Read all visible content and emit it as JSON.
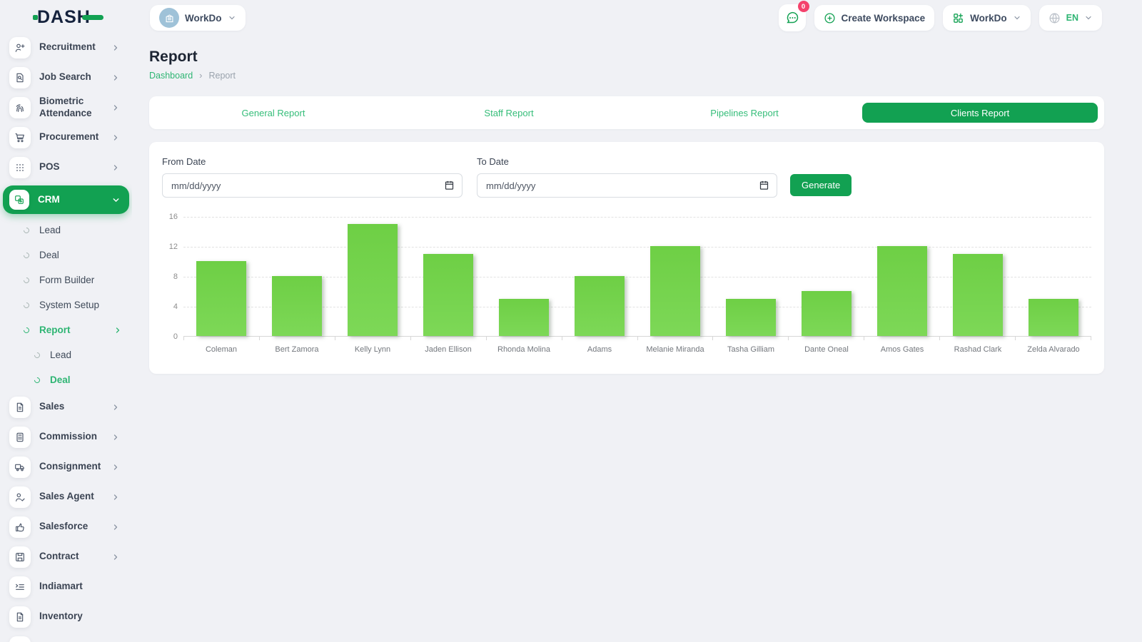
{
  "brand": {
    "logo_text": "DASH"
  },
  "header": {
    "workspace_switcher": {
      "label": "WorkDo",
      "icon": "building-avatar-icon"
    },
    "messages_button": {
      "icon": "chat-bubble-icon",
      "badge": "0"
    },
    "create_workspace": {
      "label": "Create Workspace",
      "icon": "plus-circle-icon"
    },
    "workdo_menu": {
      "label": "WorkDo",
      "icon": "grid-plus-icon"
    },
    "language_menu": {
      "label": "EN",
      "icon": "globe-icon"
    }
  },
  "sidebar": {
    "items": [
      {
        "label": "Recruitment",
        "icon": "person-plus-icon",
        "level": 0,
        "chevron": "right"
      },
      {
        "label": "Job Search",
        "icon": "document-search-icon",
        "level": 0,
        "chevron": "right"
      },
      {
        "label": "Biometric Attendance",
        "icon": "fingerprint-icon",
        "level": 0,
        "chevron": "right"
      },
      {
        "label": "Procurement",
        "icon": "cart-icon",
        "level": 0,
        "chevron": "right"
      },
      {
        "label": "POS",
        "icon": "grid-dots-icon",
        "level": 0,
        "chevron": "right"
      },
      {
        "label": "CRM",
        "icon": "boxes-icon",
        "level": 0,
        "chevron": "down",
        "active": true
      },
      {
        "label": "Lead",
        "level": 1
      },
      {
        "label": "Deal",
        "level": 1
      },
      {
        "label": "Form Builder",
        "level": 1
      },
      {
        "label": "System Setup",
        "level": 1
      },
      {
        "label": "Report",
        "level": 1,
        "active": true,
        "chevron": "right"
      },
      {
        "label": "Lead",
        "level": 2
      },
      {
        "label": "Deal",
        "level": 2,
        "active": true
      },
      {
        "label": "Sales",
        "icon": "file-icon",
        "level": 0,
        "chevron": "right"
      },
      {
        "label": "Commission",
        "icon": "calculator-icon",
        "level": 0,
        "chevron": "right"
      },
      {
        "label": "Consignment",
        "icon": "truck-icon",
        "level": 0,
        "chevron": "right"
      },
      {
        "label": "Sales Agent",
        "icon": "person-check-icon",
        "level": 0,
        "chevron": "right"
      },
      {
        "label": "Salesforce",
        "icon": "thumbs-up-icon",
        "level": 0,
        "chevron": "right"
      },
      {
        "label": "Contract",
        "icon": "save-icon",
        "level": 0,
        "chevron": "right"
      },
      {
        "label": "Indiamart",
        "icon": "list-icon",
        "level": 0
      },
      {
        "label": "Inventory",
        "icon": "file-icon",
        "level": 0
      },
      {
        "label": "",
        "icon": "file-icon",
        "level": 0
      }
    ]
  },
  "page": {
    "title": "Report",
    "breadcrumb": {
      "0": "Dashboard",
      "1": "Report"
    },
    "breadcrumb_separator": "›"
  },
  "tabs": [
    {
      "label": "General Report"
    },
    {
      "label": "Staff Report"
    },
    {
      "label": "Pipelines Report"
    },
    {
      "label": "Clients Report",
      "active": true
    }
  ],
  "filters": {
    "from_date": {
      "label": "From Date",
      "placeholder": "mm/dd/yyyy",
      "value": ""
    },
    "to_date": {
      "label": "To Date",
      "placeholder": "mm/dd/yyyy",
      "value": ""
    },
    "generate_label": "Generate"
  },
  "chart_data": {
    "type": "bar",
    "title": "",
    "xlabel": "",
    "ylabel": "",
    "categories": [
      "Coleman",
      "Bert Zamora",
      "Kelly Lynn",
      "Jaden Ellison",
      "Rhonda Molina",
      "Adams",
      "Melanie Miranda",
      "Tasha Gilliam",
      "Dante Oneal",
      "Amos Gates",
      "Rashad Clark",
      "Zelda Alvarado"
    ],
    "values": [
      10,
      8,
      15,
      11,
      5,
      8,
      12,
      5,
      6,
      12,
      11,
      5
    ],
    "yticks": [
      0,
      4,
      8,
      12,
      16
    ],
    "ylim": [
      0,
      16
    ],
    "grid": "horizontal-dashed",
    "legend": "none",
    "bar_color": "#74d24c"
  },
  "colors": {
    "primary_green": "#12a152",
    "link_green": "#2eb573",
    "bar_green": "#74d24c",
    "badge_red": "#f4426c",
    "page_bg": "#f0f1f5"
  }
}
